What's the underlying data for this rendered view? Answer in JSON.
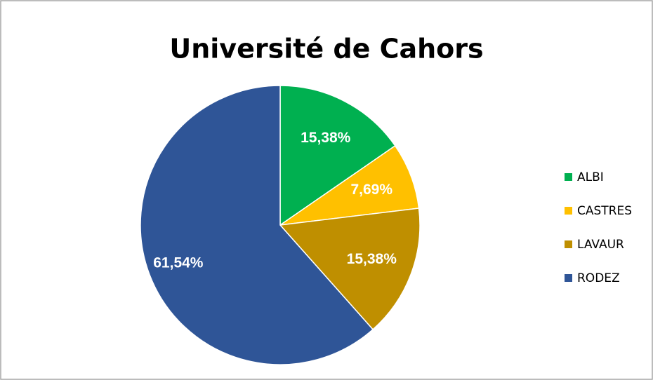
{
  "chart_data": {
    "type": "pie",
    "title": "Université de Cahors",
    "categories": [
      "ALBI",
      "CASTRES",
      "LAVAUR",
      "RODEZ"
    ],
    "values": [
      15.38,
      7.69,
      15.38,
      61.54
    ],
    "value_labels": [
      "15,38%",
      "7,69%",
      "15,38%",
      "61,54%"
    ],
    "colors": [
      "#00b050",
      "#ffc000",
      "#bf8f00",
      "#2f5597"
    ],
    "legend": "right"
  }
}
